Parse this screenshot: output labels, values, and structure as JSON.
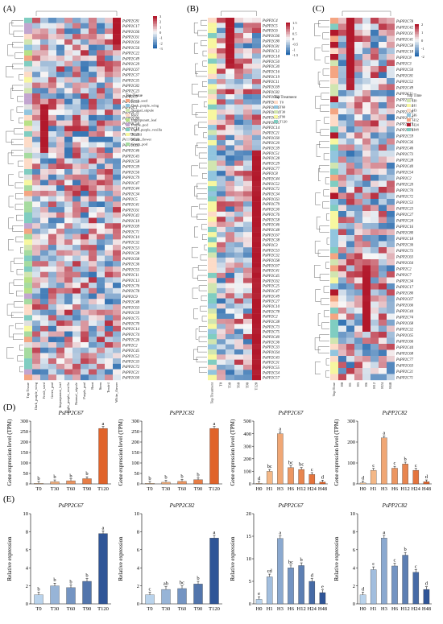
{
  "panel_labels": {
    "A": "(A)",
    "B": "(B)",
    "C": "(C)",
    "D": "(D)",
    "E": "(E)"
  },
  "colors": {
    "heat_high": "#b2182b",
    "heat_mid": "#f7f7f7",
    "heat_low": "#2166ac",
    "bar_orange_dark": "#e0632a",
    "bar_orange_light": "#f8c99a",
    "bar_blue_dark": "#2f5597",
    "bar_blue_light": "#b9d3ec"
  },
  "heatmap_A": {
    "genes": [
      "PsPP2C81",
      "PsPP2C17",
      "PsPP2C66",
      "PsPP2C61",
      "PsPP2C64",
      "PsPP2C56",
      "PsPP2C22",
      "PsPP2C49",
      "PsPP2C29",
      "PsPP2C67",
      "PsPP2C37",
      "PsPP2C35",
      "PsPP2C82",
      "PsPP2C23",
      "PsPP2C9",
      "PsPP2C51",
      "PsPP2C1",
      "PsPP2C31",
      "PsPP2C80",
      "PsPP2C50",
      "PsPP2C18",
      "PsPP2C25",
      "PsPP2C40",
      "PsPP2C65",
      "PsPP2C46",
      "PsPP2C43",
      "PsPP2C58",
      "PsPP2C39",
      "PsPP2C56",
      "PsPP2C79",
      "PsPP2C47",
      "PsPP2C44",
      "PsPP2C34",
      "PsPP2C5",
      "PsPP2C41",
      "PsPP2C61",
      "PsPP2C42",
      "PsPP2C19",
      "PsPP2C69",
      "PsPP2C71",
      "PsPP2C10",
      "PsPP2C32",
      "PsPP2C53",
      "PsPP2C28",
      "PsPP2C68",
      "PsPP2C36",
      "PsPP2C55",
      "PsPP2C11",
      "PsPP2C13",
      "PsPP2C76",
      "PsPP2C78",
      "PsPP2C9",
      "PsPP2C48",
      "PsPP2C63",
      "PsPP2C59",
      "PsPP2C75",
      "PsPP2C70",
      "PsPP2C14",
      "PsPP2C74",
      "PsPP2C26",
      "PsPP2C2",
      "PsPP2C45",
      "PsPP2C52",
      "PsPP2C33",
      "PsPP2C72",
      "PsPP2C21",
      "PsPP2C60"
    ],
    "columns": [
      "Top Tissue",
      "Dark_purple_wing",
      "Fresh_seed",
      "Green_pod",
      "Impurpurant_leaf",
      "Light_purple_vexilla",
      "Normal_stipule",
      "Purple_pod",
      "Root",
      "Stem",
      "Tendril",
      "White_flower"
    ],
    "legend_title": "Top Tissue",
    "legend_items": [
      "Fresh_seed",
      "Dark_purple_wing",
      "Normal_stipule",
      "Root",
      "Impurpurant_leaf",
      "Purple_pod",
      "Light_purple_vexilla",
      "Tendril",
      "White_flower",
      "Green_pod"
    ],
    "legend_colors": [
      "#f4a582",
      "#92c5de",
      "#d1e5b0",
      "#fddbc7",
      "#b8e186",
      "#c2a5cf",
      "#80cdc1",
      "#f7f7a0",
      "#e0e0e0",
      "#a6dba0"
    ],
    "scale_ticks": [
      "3",
      "2",
      "1",
      "0",
      "-1",
      "-2",
      "-3"
    ]
  },
  "heatmap_B": {
    "genes": [
      "PsPP2C4",
      "PsPP2C5",
      "PsPP2C6",
      "PsPP2C66",
      "PsPP2C80",
      "PsPP2C81",
      "PsPP2C12",
      "PsPP2C18",
      "PsPP2C50",
      "PsPP2C30",
      "PsPP2C16",
      "PsPP2C19",
      "PsPP2C11",
      "PsPP2C69",
      "PsPP2C82",
      "PsPP2C63",
      "PsPP2C3",
      "PsPP2C26",
      "PsPP2C24",
      "PsPP2C13",
      "PsPP2C15",
      "PsPP2C14",
      "PsPP2C21",
      "PsPP2C60",
      "PsPP2C20",
      "PsPP2C39",
      "PsPP2C51",
      "PsPP2C28",
      "PsPP2C29",
      "PsPP2C77",
      "PsPP2C8",
      "PsPP2C44",
      "PsPP2C52",
      "PsPP2C72",
      "PsPP2C34",
      "PsPP2C63",
      "PsPP2C79",
      "PsPP2C30",
      "PsPP2C76",
      "PsPP2C58",
      "PsPP2C46",
      "PsPP2C48",
      "PsPP2C67",
      "PsPP2C38",
      "PsPP2C3",
      "PsPP2C53",
      "PsPP2C32",
      "PsPP2C68",
      "PsPP2C67",
      "PsPP2C41",
      "PsPP2C45",
      "PsPP2C62",
      "PsPP2C25",
      "PsPP2C47",
      "PsPP2C49",
      "PsPP2C27",
      "PsPP2C10",
      "PsPP2C78",
      "PsPP2C2",
      "PsPP2C38",
      "PsPP2C73",
      "PsPP2C75",
      "PsPP2C40",
      "PsPP2C36",
      "PsPP2C33",
      "PsPP2C64",
      "PsPP2C43",
      "PsPP2C31",
      "PsPP2C55",
      "PsPP2C54",
      "PsPP2C57"
    ],
    "columns": [
      "Top Treatment",
      "T0",
      "T30",
      "T60",
      "T90",
      "T120"
    ],
    "legend_title": "Top Treatment",
    "legend_items": [
      "T0",
      "T60",
      "T30",
      "T90",
      "T120"
    ],
    "legend_colors": [
      "#fddbc7",
      "#92c5de",
      "#d1e5b0",
      "#f7f7a0",
      "#80cdc1"
    ],
    "scale_ticks": [
      "1.5",
      "1",
      "0.5",
      "0",
      "-0.5",
      "-1",
      "-1.5"
    ]
  },
  "heatmap_C": {
    "genes": [
      "PsPP2C78",
      "PsPP2C42",
      "PsPP2C61",
      "PsPP2C41",
      "PsPP2C58",
      "PsPP2C18",
      "PsPP2C8",
      "PsPP2C3",
      "PsPP2C50",
      "PsPP2C81",
      "PsPP2C52",
      "PsPP2C49",
      "PsPP2C11",
      "PsPP2C71",
      "PsPP2C10",
      "PsPP2C69",
      "PsPP2C57",
      "PsPP2C19",
      "PsPP2C76",
      "PsPP2C59",
      "PsPP2C36",
      "PsPP2C46",
      "PsPP2C73",
      "PsPP2C28",
      "PsPP2C40",
      "PsPP2C54",
      "PsPP2C2",
      "PsPP2C20",
      "PsPP2C70",
      "PsPP2C72",
      "PsPP2C53",
      "PsPP2C23",
      "PsPP2C27",
      "PsPP2C24",
      "PsPP2C16",
      "PsPP2C80",
      "PsPP2C18",
      "PsPP2C36",
      "PsPP2C73",
      "PsPP2C63",
      "PsPP2C64",
      "PsPP2C2",
      "PsPP2C7",
      "PsPP2C34",
      "PsPP2C17",
      "PsPP2C80",
      "PsPP2C67",
      "PsPP2C66",
      "PsPP2C44",
      "PsPP2C74",
      "PsPP2C68",
      "PsPP2C32",
      "PsPP2C65",
      "PsPP2C66",
      "PsPP2C44",
      "PsPP2C68",
      "PsPP2C77",
      "PsPP2C63",
      "PsPP2C21",
      "PsPP2C71"
    ],
    "columns": [
      "Top Time",
      "H0",
      "H1",
      "H3",
      "H6",
      "H12",
      "H24",
      "H48"
    ],
    "legend_title": "Top Time",
    "legend_items": [
      "H0",
      "H1",
      "H3",
      "H6",
      "H12",
      "H24",
      "H48"
    ],
    "legend_colors": [
      "#d1e5b0",
      "#f7f7a0",
      "#fddbc7",
      "#92c5de",
      "#f4a582",
      "#b2182b",
      "#80cdc1"
    ],
    "scale_ticks": [
      "2",
      "1",
      "0",
      "-1",
      "-2"
    ]
  },
  "chart_data": [
    {
      "type": "bar",
      "panel": "D",
      "title": "PsPP2C67",
      "ylabel": "Gene expression level (TPM)",
      "categories": [
        "T0",
        "T30",
        "T60",
        "T90",
        "T120"
      ],
      "values": [
        3,
        10,
        15,
        25,
        265
      ],
      "ylim": [
        0,
        300
      ],
      "yticks": [
        0,
        50,
        100,
        150,
        200,
        250,
        300
      ],
      "letters": [
        "b",
        "b",
        "b",
        "b",
        "a"
      ]
    },
    {
      "type": "bar",
      "panel": "D",
      "title": "PsPP2C82",
      "ylabel": "Gene expression level (TPM)",
      "categories": [
        "T0",
        "T30",
        "T60",
        "T90",
        "T120"
      ],
      "values": [
        3,
        8,
        12,
        20,
        265
      ],
      "ylim": [
        0,
        300
      ],
      "yticks": [
        0,
        50,
        100,
        150,
        200,
        250,
        300
      ],
      "letters": [
        "b",
        "b",
        "b",
        "b",
        "a"
      ]
    },
    {
      "type": "bar",
      "panel": "D",
      "title": "PsPP2C67",
      "ylabel": "Gene expression level (TPM)",
      "categories": [
        "H0",
        "H1",
        "H3",
        "H6",
        "H12",
        "H24",
        "H48"
      ],
      "values": [
        5,
        100,
        400,
        130,
        115,
        75,
        15
      ],
      "ylim": [
        0,
        500
      ],
      "yticks": [
        0,
        100,
        200,
        300,
        400,
        500
      ],
      "letters": [
        "d",
        "bc",
        "a",
        "bc",
        "bc",
        "c",
        "d"
      ]
    },
    {
      "type": "bar",
      "panel": "D",
      "title": "PsPP2C82",
      "ylabel": "Gene expression level (TPM)",
      "categories": [
        "H0",
        "H1",
        "H3",
        "H6",
        "H12",
        "H24",
        "H48"
      ],
      "values": [
        5,
        65,
        220,
        75,
        95,
        65,
        10
      ],
      "ylim": [
        0,
        300
      ],
      "yticks": [
        0,
        100,
        200,
        300
      ],
      "letters": [
        "d",
        "c",
        "a",
        "c",
        "b",
        "c",
        "d"
      ]
    },
    {
      "type": "bar",
      "panel": "E",
      "title": "PsPP2C67",
      "ylabel": "Relative expression",
      "categories": [
        "T0",
        "T30",
        "T60",
        "T90",
        "T120"
      ],
      "values": [
        1,
        2,
        1.8,
        2.5,
        7.8
      ],
      "ylim": [
        0,
        10
      ],
      "yticks": [
        0,
        2,
        4,
        6,
        8,
        10
      ],
      "letters": [
        "b",
        "b",
        "b",
        "b",
        "a"
      ]
    },
    {
      "type": "bar",
      "panel": "E",
      "title": "PsPP2C82",
      "ylabel": "Relative expression",
      "categories": [
        "T0",
        "T30",
        "T60",
        "T90",
        "T120"
      ],
      "values": [
        1,
        1.6,
        1.7,
        2.2,
        7.3
      ],
      "ylim": [
        0,
        10
      ],
      "yticks": [
        0,
        2,
        4,
        6,
        8,
        10
      ],
      "letters": [
        "c",
        "ab",
        "bc",
        "b",
        "a"
      ]
    },
    {
      "type": "bar",
      "panel": "E",
      "title": "PsPP2C67",
      "ylabel": "Relative expression",
      "categories": [
        "H0",
        "H1",
        "H3",
        "H6",
        "H12",
        "H24",
        "H48"
      ],
      "values": [
        1,
        6,
        14.5,
        8,
        8.5,
        5,
        2.5
      ],
      "ylim": [
        0,
        20
      ],
      "yticks": [
        0,
        5,
        10,
        15,
        20
      ],
      "letters": [
        "e",
        "cd",
        "a",
        "bc",
        "b",
        "d",
        "e"
      ]
    },
    {
      "type": "bar",
      "panel": "E",
      "title": "PsPP2C82",
      "ylabel": "Relative expression",
      "categories": [
        "H0",
        "H1",
        "H3",
        "H6",
        "H12",
        "H24",
        "H48"
      ],
      "values": [
        1,
        3.8,
        7.3,
        4.2,
        5.4,
        3.5,
        1.6
      ],
      "ylim": [
        0,
        10
      ],
      "yticks": [
        0,
        2,
        4,
        6,
        8,
        10
      ],
      "letters": [
        "d",
        "c",
        "a",
        "c",
        "b",
        "c",
        "d"
      ]
    }
  ]
}
